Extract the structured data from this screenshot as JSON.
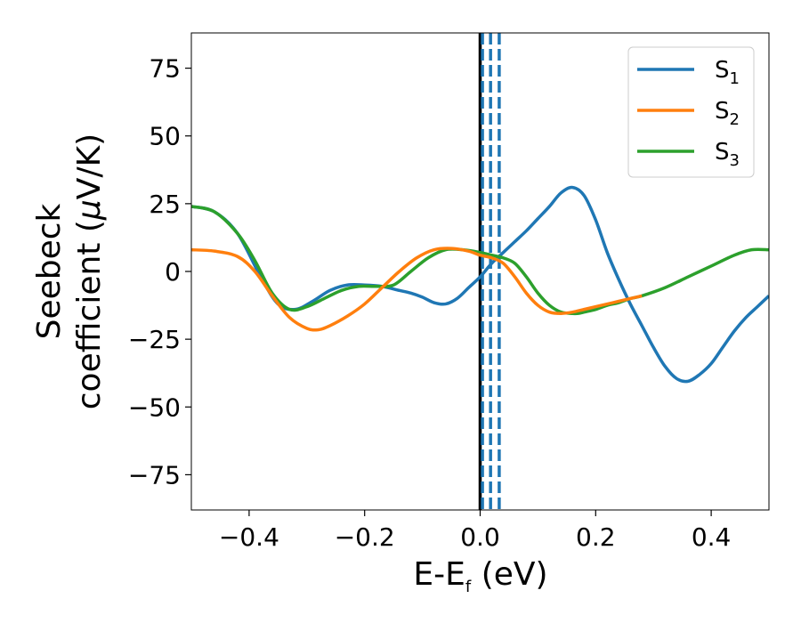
{
  "chart_data": {
    "type": "line",
    "xlabel": "E-E",
    "xlabel_sub": "f",
    "xlabel_unit": " (eV)",
    "ylabel_line1": "Seebeck",
    "ylabel_line2": "coefficient  (",
    "ylabel_mu": "μ",
    "ylabel_unit": "V/K)",
    "xlim": [
      -0.5,
      0.5
    ],
    "ylim": [
      -88,
      88
    ],
    "xticks": [
      -0.4,
      -0.2,
      0.0,
      0.2,
      0.4
    ],
    "xtick_labels": [
      "−0.4",
      "−0.2",
      "0.0",
      "0.2",
      "0.4"
    ],
    "yticks": [
      -75,
      -50,
      -25,
      0,
      25,
      50,
      75
    ],
    "ytick_labels": [
      "−75",
      "−50",
      "−25",
      "0",
      "25",
      "50",
      "75"
    ],
    "grid": false,
    "legend_position": "top-right",
    "vlines": [
      {
        "x": 0.0,
        "color": "#000000",
        "style": "solid"
      },
      {
        "x": 0.004,
        "color": "#1f77b4",
        "style": "dashed"
      },
      {
        "x": 0.018,
        "color": "#1f77b4",
        "style": "dashed"
      },
      {
        "x": 0.033,
        "color": "#1f77b4",
        "style": "dashed"
      }
    ],
    "series": [
      {
        "name": "S",
        "sub": "1",
        "color": "#1f77b4",
        "x": [
          -0.5,
          -0.46,
          -0.42,
          -0.38,
          -0.35,
          -0.32,
          -0.29,
          -0.26,
          -0.23,
          -0.2,
          -0.17,
          -0.14,
          -0.12,
          -0.1,
          -0.08,
          -0.06,
          -0.04,
          -0.02,
          0.0,
          0.02,
          0.04,
          0.06,
          0.08,
          0.1,
          0.12,
          0.14,
          0.16,
          0.18,
          0.2,
          0.22,
          0.24,
          0.26,
          0.28,
          0.3,
          0.32,
          0.34,
          0.36,
          0.38,
          0.4,
          0.42,
          0.44,
          0.46,
          0.48,
          0.5
        ],
        "values": [
          24,
          22,
          14,
          -2,
          -12,
          -14,
          -11,
          -7,
          -5,
          -5,
          -5.5,
          -7,
          -8,
          -9.5,
          -11.5,
          -12,
          -10,
          -6,
          -2,
          3,
          7,
          11,
          15,
          19.5,
          24,
          29,
          31,
          28,
          19,
          7,
          -3,
          -12,
          -20,
          -28,
          -35,
          -39.5,
          -40.5,
          -38,
          -34,
          -28,
          -22,
          -17,
          -13,
          -9
        ]
      },
      {
        "name": "S",
        "sub": "2",
        "color": "#ff7f0e",
        "x": [
          -0.5,
          -0.46,
          -0.42,
          -0.39,
          -0.36,
          -0.33,
          -0.3,
          -0.28,
          -0.26,
          -0.23,
          -0.2,
          -0.17,
          -0.14,
          -0.11,
          -0.08,
          -0.05,
          -0.02,
          0.0,
          0.02,
          0.04,
          0.06,
          0.08,
          0.1,
          0.12,
          0.14,
          0.16,
          0.18,
          0.2,
          0.22,
          0.24,
          0.26,
          0.28
        ],
        "values": [
          8,
          7.5,
          5.5,
          0,
          -9,
          -17,
          -21,
          -21.5,
          -20,
          -16.5,
          -12,
          -6,
          0,
          5,
          8,
          8.5,
          7.5,
          6,
          5,
          3,
          -2,
          -8,
          -12.5,
          -15,
          -15.5,
          -15,
          -14,
          -13,
          -12,
          -11,
          -10,
          -9
        ]
      },
      {
        "name": "S",
        "sub": "3",
        "color": "#2ca02c",
        "x": [
          -0.5,
          -0.46,
          -0.42,
          -0.39,
          -0.36,
          -0.33,
          -0.3,
          -0.27,
          -0.24,
          -0.21,
          -0.18,
          -0.15,
          -0.12,
          -0.09,
          -0.06,
          -0.03,
          0.0,
          0.02,
          0.04,
          0.06,
          0.08,
          0.1,
          0.12,
          0.14,
          0.16,
          0.17,
          0.18,
          0.2,
          0.22,
          0.24,
          0.26,
          0.28,
          0.32,
          0.36,
          0.4,
          0.44,
          0.47,
          0.5
        ],
        "values": [
          24,
          22,
          14,
          4,
          -8,
          -14,
          -13,
          -10,
          -7,
          -5.5,
          -5.5,
          -5,
          0,
          5,
          8,
          8,
          7,
          6,
          5,
          3,
          -2,
          -8,
          -12.5,
          -15,
          -15.5,
          -15.5,
          -15,
          -14,
          -12.5,
          -11.5,
          -10,
          -9,
          -6,
          -2,
          2,
          6,
          8,
          8
        ]
      }
    ]
  }
}
